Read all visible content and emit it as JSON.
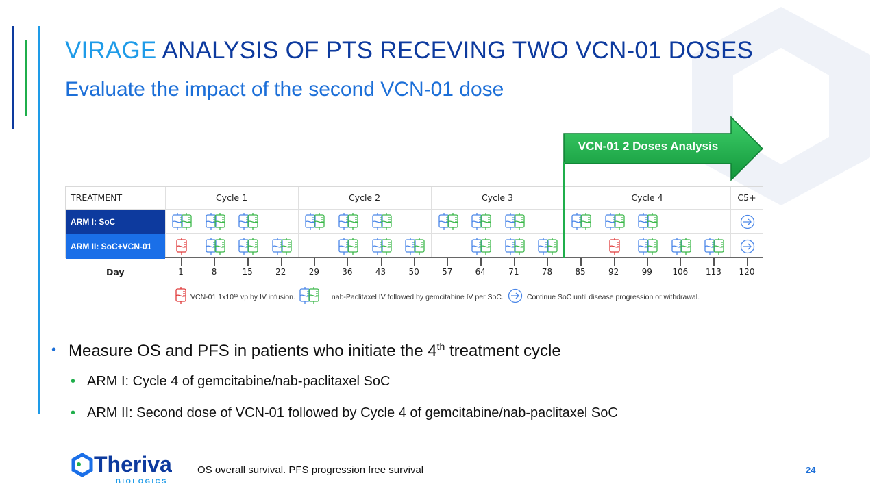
{
  "title": {
    "highlight": "VIRAGE",
    "rest": " ANALYSIS OF PTS RECEVING TWO VCN-01 DOSES"
  },
  "subtitle": "Evaluate the impact of the second VCN-01 dose",
  "analysis_arrow": "VCN-01 2 Doses Analysis",
  "table": {
    "treatment_header": "TREATMENT",
    "cycles": [
      "Cycle 1",
      "Cycle 2",
      "Cycle 3",
      "Cycle 4",
      "C5+"
    ],
    "arms": [
      {
        "label": "ARM I: SoC",
        "color": "#0d3a9e",
        "soc_days": [
          1,
          8,
          15,
          29,
          36,
          43,
          57,
          64,
          71,
          85,
          92,
          99
        ],
        "vcn_days": [],
        "continue": true
      },
      {
        "label": "ARM II: SoC+VCN-01",
        "color": "#1a6fe8",
        "soc_days": [
          8,
          15,
          22,
          36,
          43,
          50,
          64,
          71,
          78,
          99,
          106,
          113
        ],
        "vcn_days": [
          1,
          92
        ],
        "continue": true
      }
    ],
    "day_label": "Day",
    "days": [
      1,
      8,
      15,
      22,
      29,
      36,
      43,
      50,
      57,
      64,
      71,
      78,
      85,
      92,
      99,
      106,
      113,
      120
    ]
  },
  "legend": {
    "vcn": "VCN-01 1x10¹³ vp by IV infusion.",
    "soc": "nab-Paclitaxel IV followed by gemcitabine IV per SoC.",
    "continue": "Continue SoC until disease progression or withdrawal."
  },
  "bullets": {
    "main_pre": "Measure OS and PFS in patients who initiate the 4",
    "main_sup": "th",
    "main_post": " treatment cycle",
    "sub": [
      "ARM I: Cycle 4 of gemcitabine/nab-paclitaxel SoC",
      "ARM II: Second dose of VCN-01 followed by Cycle 4 of gemcitabine/nab-paclitaxel SoC"
    ]
  },
  "footnote": "OS overall survival. PFS progression free survival",
  "page_number": "24",
  "logo": {
    "name": "Theriva",
    "sub": "BIOLOGICS"
  },
  "colors": {
    "blue": "#4a86e8",
    "green": "#3cb84a",
    "red": "#e03a3a",
    "navy": "#0d3a9e"
  }
}
